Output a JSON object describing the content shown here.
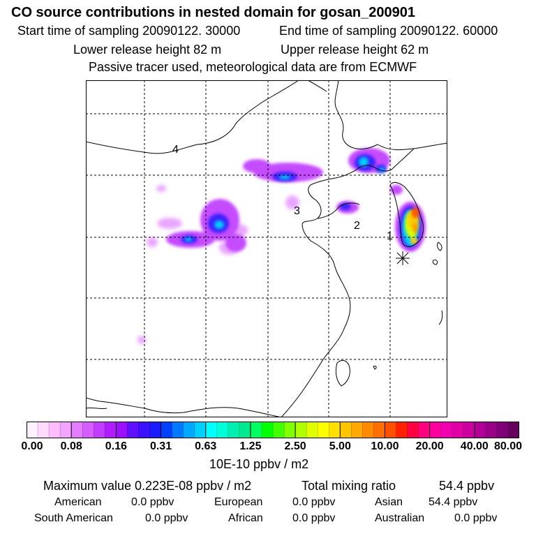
{
  "header": {
    "title": "CO  source contributions in nested domain for gosan_200901",
    "start_label": "Start time of sampling 20090122. 30000",
    "end_label": "End time of sampling 20090122. 60000",
    "lower_label": "Lower release height   82 m",
    "upper_label": "Upper release height   62 m",
    "tracer_label": "Passive tracer used, meteorological data are from ECMWF"
  },
  "map": {
    "region_labels": [
      "1",
      "2",
      "3",
      "4"
    ]
  },
  "colorbar": {
    "ticks": [
      "0.00",
      "0.08",
      "0.16",
      "0.31",
      "0.63",
      "1.25",
      "2.50",
      "5.00",
      "10.00",
      "20.00",
      "40.00",
      "80.00"
    ],
    "unit": "10E-10 ppbv / m2",
    "colors": [
      "#fff0ff",
      "#ffd9ff",
      "#ffbcff",
      "#f3a4ff",
      "#e37cff",
      "#d55cff",
      "#c23cff",
      "#b01cff",
      "#9a10ff",
      "#6010ff",
      "#3a10ff",
      "#1a1aff",
      "#0040ff",
      "#0078ff",
      "#00a8ff",
      "#00d0ff",
      "#00ffff",
      "#00ffd8",
      "#00f0b0",
      "#00ea90",
      "#00ff60",
      "#00ff00",
      "#40ff00",
      "#80ff00",
      "#b0ff00",
      "#e0ff00",
      "#ffff00",
      "#ffe000",
      "#ffc400",
      "#ffa800",
      "#ff8c00",
      "#ff7000",
      "#ff5000",
      "#ff2000",
      "#ff0040",
      "#ff0080",
      "#ff00a0",
      "#f000b0",
      "#e000a8",
      "#cc00a0",
      "#b00098",
      "#980088",
      "#800078",
      "#680060"
    ]
  },
  "stats": {
    "max_label": "Maximum value  0.223E-08 ppbv / m2",
    "total_label": "Total mixing ratio",
    "total_value": "54.4 ppbv",
    "contributions": [
      {
        "name": "American",
        "value": "0.0 ppbv"
      },
      {
        "name": "European",
        "value": "0.0 ppbv"
      },
      {
        "name": "Asian",
        "value": "54.4 ppbv"
      },
      {
        "name": "South American",
        "value": "0.0 ppbv"
      },
      {
        "name": "African",
        "value": "0.0 ppbv"
      },
      {
        "name": "Australian",
        "value": "0.0 ppbv"
      }
    ]
  }
}
